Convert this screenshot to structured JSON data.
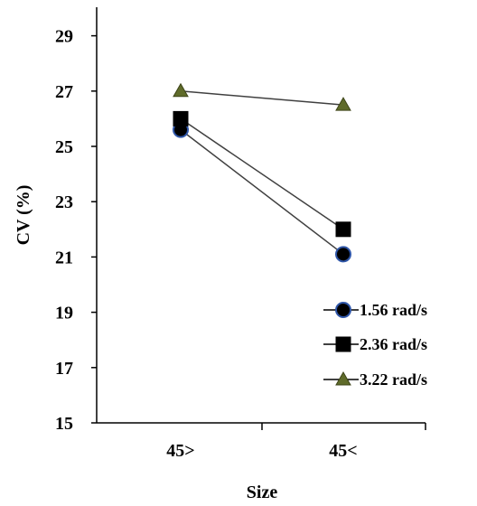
{
  "chart_data": {
    "type": "line",
    "categories": [
      "45>",
      "45<"
    ],
    "xlabel": "Size",
    "ylabel": "CV (%)",
    "ylim": [
      15,
      30
    ],
    "yticks": [
      15,
      17,
      19,
      21,
      23,
      25,
      27,
      29
    ],
    "grid": false,
    "legend_position": "bottom-right",
    "series": [
      {
        "name": "1.56 rad/s",
        "values": [
          25.6,
          21.1
        ],
        "marker": "circle",
        "marker_color": "#000000",
        "marker_edge": "#2f56a8",
        "line_color": "#404040"
      },
      {
        "name": "2.36  rad/s",
        "values": [
          26.0,
          22.0
        ],
        "marker": "square",
        "marker_color": "#000000",
        "marker_edge": "#000000",
        "line_color": "#404040"
      },
      {
        "name": "3.22 rad/s",
        "values": [
          27.0,
          26.5
        ],
        "marker": "triangle",
        "marker_color": "#5f6b2a",
        "marker_edge": "#5f6b2a",
        "line_color": "#404040"
      }
    ]
  }
}
